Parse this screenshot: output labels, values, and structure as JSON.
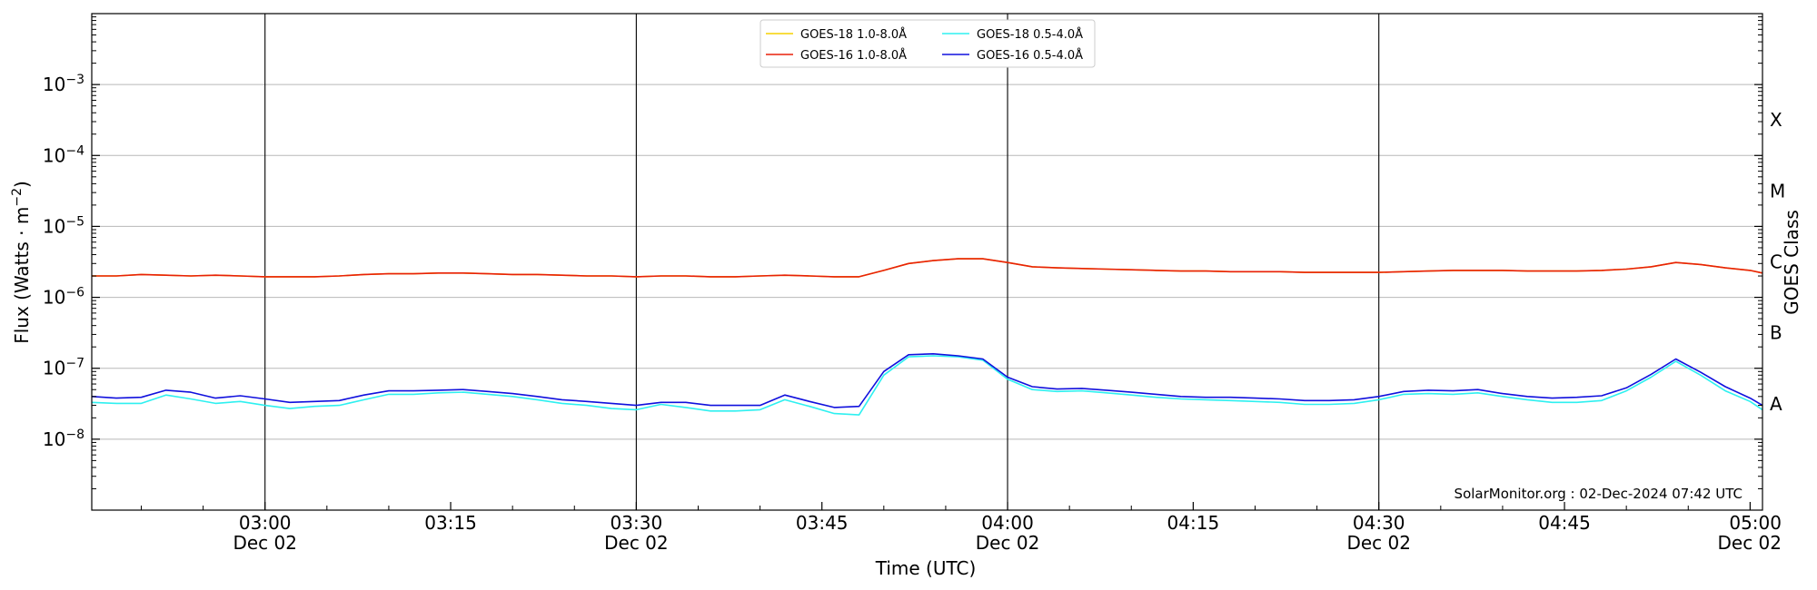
{
  "chart_data": {
    "type": "line",
    "xlabel": "Time (UTC)",
    "ylabel_main": "Flux (Watts · m",
    "ylabel_sup": "−2",
    "ylabel_close": ")",
    "right_label": "GOES Class",
    "credit": "SolarMonitor.org : 02-Dec-2024 07:42 UTC",
    "y_scale": "log",
    "ylim": [
      1e-09,
      0.01
    ],
    "xlim": [
      "02:46",
      "05:01"
    ],
    "grid": "horizontal",
    "legend_position": "top-center",
    "x_ticks": [
      {
        "time": "03:00",
        "label": "03:00",
        "date": "Dec 02"
      },
      {
        "time": "03:15",
        "label": "03:15",
        "date": ""
      },
      {
        "time": "03:30",
        "label": "03:30",
        "date": "Dec 02"
      },
      {
        "time": "03:45",
        "label": "03:45",
        "date": ""
      },
      {
        "time": "04:00",
        "label": "04:00",
        "date": "Dec 02"
      },
      {
        "time": "04:15",
        "label": "04:15",
        "date": ""
      },
      {
        "time": "04:30",
        "label": "04:30",
        "date": "Dec 02"
      },
      {
        "time": "04:45",
        "label": "04:45",
        "date": ""
      },
      {
        "time": "05:00",
        "label": "05:00",
        "date": "Dec 02"
      }
    ],
    "vertical_lines": [
      "03:00",
      "03:30",
      "04:00",
      "04:30"
    ],
    "y_ticks": [
      {
        "base": "10",
        "exp": "−3",
        "value": 0.001
      },
      {
        "base": "10",
        "exp": "−4",
        "value": 0.0001
      },
      {
        "base": "10",
        "exp": "−5",
        "value": 1e-05
      },
      {
        "base": "10",
        "exp": "−6",
        "value": 1e-06
      },
      {
        "base": "10",
        "exp": "−7",
        "value": 1e-07
      },
      {
        "base": "10",
        "exp": "−8",
        "value": 1e-08
      }
    ],
    "goes_classes": [
      {
        "label": "X",
        "value": 0.000316
      },
      {
        "label": "M",
        "value": 3.16e-05
      },
      {
        "label": "C",
        "value": 3.16e-06
      },
      {
        "label": "B",
        "value": 3.16e-07
      },
      {
        "label": "A",
        "value": 3.16e-08
      }
    ],
    "x": [
      "02:46",
      "02:48",
      "02:50",
      "02:52",
      "02:54",
      "02:56",
      "02:58",
      "03:00",
      "03:02",
      "03:04",
      "03:06",
      "03:08",
      "03:10",
      "03:12",
      "03:14",
      "03:16",
      "03:18",
      "03:20",
      "03:22",
      "03:24",
      "03:26",
      "03:28",
      "03:30",
      "03:32",
      "03:34",
      "03:36",
      "03:38",
      "03:40",
      "03:42",
      "03:44",
      "03:46",
      "03:48",
      "03:50",
      "03:52",
      "03:54",
      "03:56",
      "03:58",
      "04:00",
      "04:02",
      "04:04",
      "04:06",
      "04:08",
      "04:10",
      "04:12",
      "04:14",
      "04:16",
      "04:18",
      "04:20",
      "04:22",
      "04:24",
      "04:26",
      "04:28",
      "04:30",
      "04:32",
      "04:34",
      "04:36",
      "04:38",
      "04:40",
      "04:42",
      "04:44",
      "04:46",
      "04:48",
      "04:50",
      "04:52",
      "04:54",
      "04:56",
      "04:58",
      "05:00",
      "05:01"
    ],
    "series": [
      {
        "name": "GOES-18 1.0-8.0Å",
        "color": "#f5d000",
        "values": [
          2e-06,
          2e-06,
          2.1e-06,
          2.05e-06,
          2e-06,
          2.05e-06,
          2e-06,
          1.95e-06,
          1.95e-06,
          1.95e-06,
          2e-06,
          2.1e-06,
          2.15e-06,
          2.15e-06,
          2.2e-06,
          2.2e-06,
          2.15e-06,
          2.1e-06,
          2.1e-06,
          2.05e-06,
          2e-06,
          2e-06,
          1.95e-06,
          2e-06,
          2e-06,
          1.95e-06,
          1.95e-06,
          2e-06,
          2.05e-06,
          2e-06,
          1.95e-06,
          1.95e-06,
          2.4e-06,
          3e-06,
          3.3e-06,
          3.5e-06,
          3.5e-06,
          3.1e-06,
          2.7e-06,
          2.6e-06,
          2.55e-06,
          2.5e-06,
          2.45e-06,
          2.4e-06,
          2.35e-06,
          2.35e-06,
          2.3e-06,
          2.3e-06,
          2.3e-06,
          2.25e-06,
          2.25e-06,
          2.25e-06,
          2.25e-06,
          2.3e-06,
          2.35e-06,
          2.4e-06,
          2.4e-06,
          2.4e-06,
          2.35e-06,
          2.35e-06,
          2.35e-06,
          2.4e-06,
          2.5e-06,
          2.7e-06,
          3.1e-06,
          2.9e-06,
          2.6e-06,
          2.4e-06,
          2.2e-06
        ]
      },
      {
        "name": "GOES-16 1.0-8.0Å",
        "color": "#e8200a",
        "values": [
          2e-06,
          2e-06,
          2.1e-06,
          2.05e-06,
          2e-06,
          2.05e-06,
          2e-06,
          1.95e-06,
          1.95e-06,
          1.95e-06,
          2e-06,
          2.1e-06,
          2.15e-06,
          2.15e-06,
          2.2e-06,
          2.2e-06,
          2.15e-06,
          2.1e-06,
          2.1e-06,
          2.05e-06,
          2e-06,
          2e-06,
          1.95e-06,
          2e-06,
          2e-06,
          1.95e-06,
          1.95e-06,
          2e-06,
          2.05e-06,
          2e-06,
          1.95e-06,
          1.95e-06,
          2.4e-06,
          3e-06,
          3.3e-06,
          3.5e-06,
          3.5e-06,
          3.1e-06,
          2.7e-06,
          2.6e-06,
          2.55e-06,
          2.5e-06,
          2.45e-06,
          2.4e-06,
          2.35e-06,
          2.35e-06,
          2.3e-06,
          2.3e-06,
          2.3e-06,
          2.25e-06,
          2.25e-06,
          2.25e-06,
          2.25e-06,
          2.3e-06,
          2.35e-06,
          2.4e-06,
          2.4e-06,
          2.4e-06,
          2.35e-06,
          2.35e-06,
          2.35e-06,
          2.4e-06,
          2.5e-06,
          2.7e-06,
          3.1e-06,
          2.9e-06,
          2.6e-06,
          2.4e-06,
          2.2e-06
        ]
      },
      {
        "name": "GOES-18 0.5-4.0Å",
        "color": "#2ef0f0",
        "values": [
          3.3e-08,
          3.2e-08,
          3.2e-08,
          4.2e-08,
          3.7e-08,
          3.2e-08,
          3.4e-08,
          3e-08,
          2.7e-08,
          2.9e-08,
          3e-08,
          3.6e-08,
          4.3e-08,
          4.3e-08,
          4.5e-08,
          4.6e-08,
          4.3e-08,
          4e-08,
          3.6e-08,
          3.2e-08,
          3e-08,
          2.7e-08,
          2.6e-08,
          3.1e-08,
          2.8e-08,
          2.5e-08,
          2.5e-08,
          2.6e-08,
          3.6e-08,
          2.9e-08,
          2.3e-08,
          2.2e-08,
          8e-08,
          1.45e-07,
          1.5e-07,
          1.45e-07,
          1.3e-07,
          7e-08,
          5e-08,
          4.7e-08,
          4.8e-08,
          4.5e-08,
          4.2e-08,
          3.9e-08,
          3.7e-08,
          3.6e-08,
          3.5e-08,
          3.4e-08,
          3.3e-08,
          3.1e-08,
          3.1e-08,
          3.2e-08,
          3.6e-08,
          4.3e-08,
          4.4e-08,
          4.3e-08,
          4.5e-08,
          4e-08,
          3.6e-08,
          3.3e-08,
          3.3e-08,
          3.5e-08,
          4.8e-08,
          7.5e-08,
          1.25e-07,
          8e-08,
          4.8e-08,
          3.4e-08,
          2.6e-08
        ]
      },
      {
        "name": "GOES-16 0.5-4.0Å",
        "color": "#1010dd",
        "values": [
          4e-08,
          3.8e-08,
          3.9e-08,
          4.9e-08,
          4.6e-08,
          3.8e-08,
          4.1e-08,
          3.7e-08,
          3.3e-08,
          3.4e-08,
          3.5e-08,
          4.2e-08,
          4.8e-08,
          4.8e-08,
          4.9e-08,
          5e-08,
          4.7e-08,
          4.4e-08,
          4e-08,
          3.6e-08,
          3.4e-08,
          3.2e-08,
          3e-08,
          3.3e-08,
          3.3e-08,
          3e-08,
          3e-08,
          3e-08,
          4.2e-08,
          3.4e-08,
          2.8e-08,
          2.9e-08,
          9e-08,
          1.55e-07,
          1.6e-07,
          1.5e-07,
          1.35e-07,
          7.5e-08,
          5.5e-08,
          5.1e-08,
          5.2e-08,
          4.9e-08,
          4.6e-08,
          4.3e-08,
          4e-08,
          3.9e-08,
          3.9e-08,
          3.8e-08,
          3.7e-08,
          3.5e-08,
          3.5e-08,
          3.6e-08,
          4e-08,
          4.7e-08,
          4.9e-08,
          4.8e-08,
          5e-08,
          4.4e-08,
          4e-08,
          3.8e-08,
          3.9e-08,
          4.1e-08,
          5.3e-08,
          8.2e-08,
          1.35e-07,
          8.8e-08,
          5.5e-08,
          3.8e-08,
          3e-08
        ]
      }
    ]
  }
}
